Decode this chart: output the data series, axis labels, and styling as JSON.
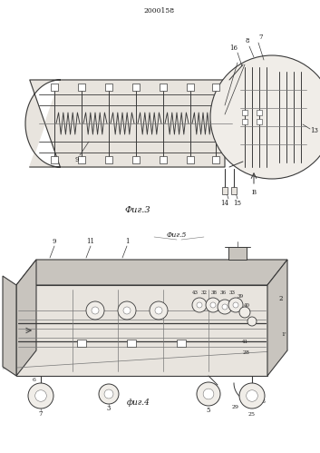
{
  "patent_number": "2000158",
  "fig3_caption": "Фиг.3",
  "fig4_caption": "фиг.4",
  "fig4_top_label": "Фиг.5",
  "line_color": "#3a3a3a",
  "light_line": "#777777",
  "fill_main": "#e8e4de",
  "fill_dark": "#c8c4be",
  "fill_light": "#f0ede8"
}
